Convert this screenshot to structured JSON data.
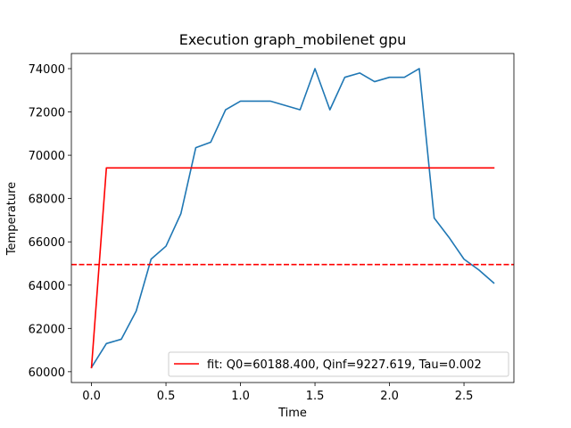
{
  "chart_data": {
    "type": "line",
    "title": "Execution graph_mobilenet gpu",
    "xlabel": "Time",
    "ylabel": "Temperature",
    "xlim": [
      -0.135,
      2.835
    ],
    "ylim": [
      59500,
      74700
    ],
    "xticks": [
      0.0,
      0.5,
      1.0,
      1.5,
      2.0,
      2.5
    ],
    "xtick_labels": [
      "0.0",
      "0.5",
      "1.0",
      "1.5",
      "2.0",
      "2.5"
    ],
    "yticks": [
      60000,
      62000,
      64000,
      66000,
      68000,
      70000,
      72000,
      74000
    ],
    "ytick_labels": [
      "60000",
      "62000",
      "64000",
      "66000",
      "68000",
      "70000",
      "72000",
      "74000"
    ],
    "grid": false,
    "legend_position": "lower-right",
    "series": [
      {
        "color": "#1f77b4",
        "style": "solid",
        "x": [
          0.0,
          0.1,
          0.2,
          0.3,
          0.4,
          0.5,
          0.6,
          0.7,
          0.8,
          0.9,
          1.0,
          1.1,
          1.2,
          1.3,
          1.4,
          1.5,
          1.6,
          1.7,
          1.8,
          1.9,
          2.0,
          2.1,
          2.2,
          2.3,
          2.4,
          2.5,
          2.6,
          2.7
        ],
        "y": [
          60200,
          61300,
          61500,
          62800,
          65200,
          65800,
          67300,
          70350,
          70600,
          72100,
          72500,
          72500,
          72500,
          72300,
          72100,
          74000,
          72100,
          73600,
          73800,
          73400,
          73600,
          73600,
          74000,
          67100,
          66200,
          65200,
          64700,
          64100
        ]
      },
      {
        "name": "fit: Q0=60188.400, Qinf=9227.619, Tau=0.002",
        "color": "#ff0000",
        "style": "solid",
        "x": [
          0.0,
          0.1,
          0.2,
          0.3,
          0.4,
          0.5,
          0.6,
          0.7,
          0.8,
          0.9,
          1.0,
          1.1,
          1.2,
          1.3,
          1.4,
          1.5,
          1.6,
          1.7,
          1.8,
          1.9,
          2.0,
          2.1,
          2.2,
          2.3,
          2.4,
          2.5,
          2.6,
          2.7
        ],
        "y": [
          60188.4,
          69416.0,
          69416.0,
          69416.0,
          69416.0,
          69416.0,
          69416.0,
          69416.0,
          69416.0,
          69416.0,
          69416.0,
          69416.0,
          69416.0,
          69416.0,
          69416.0,
          69416.0,
          69416.0,
          69416.0,
          69416.0,
          69416.0,
          69416.0,
          69416.0,
          69416.0,
          69416.0,
          69416.0,
          69416.0,
          69416.0,
          69416.0
        ]
      }
    ],
    "hlines": [
      {
        "y": 64950,
        "color": "#ff0000",
        "style": "dashed"
      }
    ]
  }
}
